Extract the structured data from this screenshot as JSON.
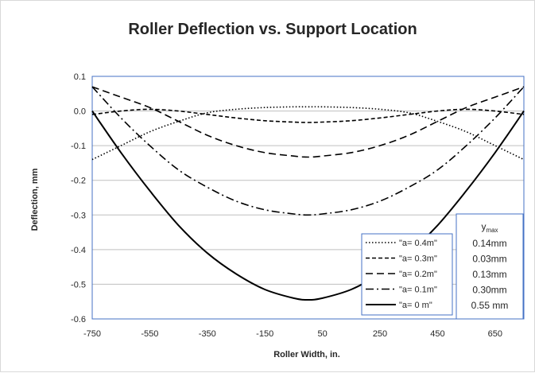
{
  "chart_data": {
    "type": "line",
    "title": "Roller Deflection vs. Support Location",
    "xlabel": "Roller Width, in.",
    "ylabel": "Deflection, mm",
    "xlim": [
      -750,
      750
    ],
    "ylim": [
      -0.6,
      0.1
    ],
    "x_ticks": [
      -750,
      -550,
      -350,
      -150,
      50,
      250,
      450,
      650
    ],
    "y_ticks": [
      0.1,
      0.0,
      -0.1,
      -0.2,
      -0.3,
      -0.4,
      -0.5,
      -0.6
    ],
    "y_tick_labels": [
      "0.1",
      "0.0",
      "-0.1",
      "-0.2",
      "-0.3",
      "-0.4",
      "-0.5",
      "-0.6"
    ],
    "grid": "horizontal",
    "legend_position": "bottom-right",
    "series": [
      {
        "name": "\"a= 0.4m\"",
        "dash": "dotted",
        "x": [
          -750,
          -650,
          -550,
          -450,
          -350,
          -250,
          -150,
          -50,
          0,
          50,
          150,
          250,
          350,
          450,
          550,
          650,
          750
        ],
        "y": [
          -0.14,
          -0.1,
          -0.06,
          -0.03,
          -0.005,
          0.005,
          0.01,
          0.012,
          0.012,
          0.012,
          0.01,
          0.005,
          -0.005,
          -0.03,
          -0.06,
          -0.1,
          -0.14
        ]
      },
      {
        "name": "\"a= 0.3m\"",
        "dash": "short-dash",
        "x": [
          -750,
          -650,
          -550,
          -450,
          -350,
          -250,
          -150,
          -50,
          0,
          50,
          150,
          250,
          350,
          450,
          550,
          650,
          750
        ],
        "y": [
          -0.01,
          0.0,
          0.005,
          0.0,
          -0.01,
          -0.02,
          -0.028,
          -0.032,
          -0.033,
          -0.032,
          -0.028,
          -0.02,
          -0.01,
          0.0,
          0.005,
          0.0,
          -0.01
        ]
      },
      {
        "name": "\"a= 0.2m\"",
        "dash": "long-dash",
        "x": [
          -750,
          -650,
          -550,
          -450,
          -350,
          -250,
          -150,
          -50,
          0,
          50,
          150,
          250,
          350,
          450,
          550,
          650,
          750
        ],
        "y": [
          0.07,
          0.04,
          0.01,
          -0.03,
          -0.07,
          -0.1,
          -0.12,
          -0.13,
          -0.133,
          -0.13,
          -0.12,
          -0.1,
          -0.07,
          -0.03,
          0.01,
          0.04,
          0.07
        ]
      },
      {
        "name": "\"a= 0.1m\"",
        "dash": "dash-dot",
        "x": [
          -750,
          -650,
          -550,
          -450,
          -350,
          -250,
          -150,
          -50,
          0,
          50,
          150,
          250,
          350,
          450,
          550,
          650,
          750
        ],
        "y": [
          0.07,
          -0.02,
          -0.1,
          -0.17,
          -0.22,
          -0.26,
          -0.285,
          -0.297,
          -0.3,
          -0.297,
          -0.285,
          -0.26,
          -0.22,
          -0.17,
          -0.1,
          -0.02,
          0.07
        ]
      },
      {
        "name": "\"a= 0 m\"",
        "dash": "solid",
        "x": [
          -750,
          -650,
          -550,
          -450,
          -350,
          -250,
          -150,
          -50,
          0,
          50,
          150,
          250,
          350,
          450,
          550,
          650,
          750
        ],
        "y": [
          0.0,
          -0.12,
          -0.23,
          -0.33,
          -0.41,
          -0.47,
          -0.515,
          -0.54,
          -0.545,
          -0.54,
          -0.515,
          -0.47,
          -0.41,
          -0.33,
          -0.23,
          -0.12,
          0.0
        ]
      }
    ],
    "ymax_box": {
      "header": "y",
      "header_sub": "max",
      "values": [
        "0.14mm",
        "0.03mm",
        "0.13mm",
        "0.30mm",
        "0.55 mm"
      ]
    }
  }
}
